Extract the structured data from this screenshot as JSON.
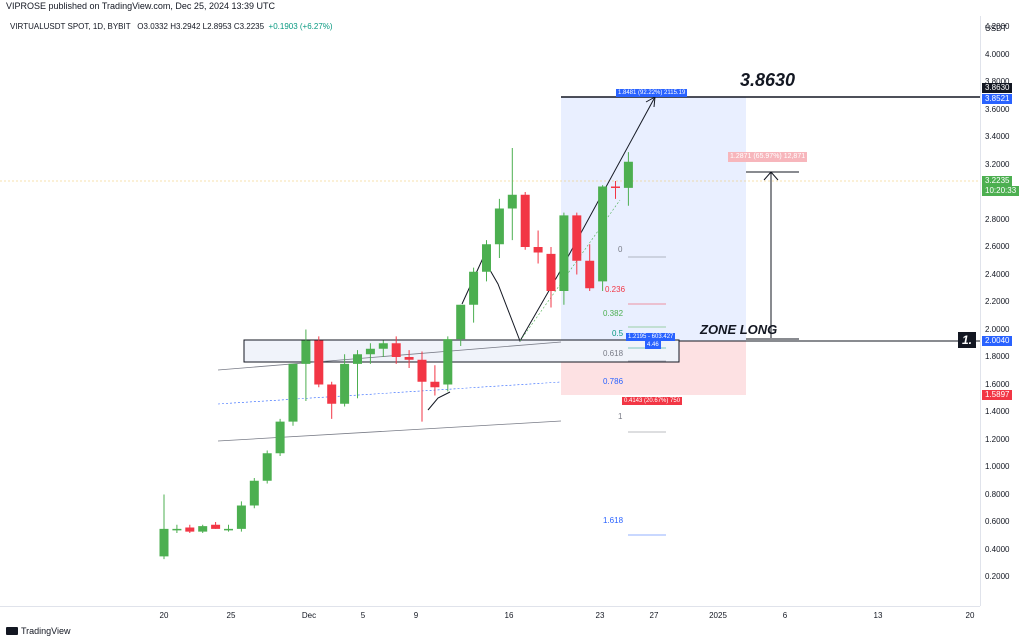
{
  "header": {
    "published": "VIPROSE published on TradingView.com, Dec 25, 2024 13:39 UTC",
    "symbol": "VIRTUALUSDT SPOT, 1D, BYBIT",
    "ohlc": "O3.0332  H3.2942  L2.8953  C3.2235",
    "change": "+0.1903 (+6.27%)",
    "currency": "USDT"
  },
  "price_axis": [
    "4.2000",
    "4.0000",
    "3.8000",
    "3.6000",
    "3.4000",
    "3.2000",
    "3.0000",
    "2.8000",
    "2.6000",
    "2.4000",
    "2.2000",
    "2.0000",
    "1.8000",
    "1.6000",
    "1.4000",
    "1.2000",
    "1.0000",
    "0.8000",
    "0.6000",
    "0.4000",
    "0.2000"
  ],
  "time_axis": [
    "20",
    "25",
    "Dec",
    "5",
    "9",
    "16",
    "23",
    "27",
    "2025",
    "6",
    "13",
    "20"
  ],
  "tags": {
    "target": "3.8630",
    "tp_box": "3.8521",
    "current": "3.2235",
    "countdown": "10:20:33",
    "entry": "2.0040",
    "stop": "1.5897"
  },
  "annotations": {
    "target_label": "3.8630",
    "zone_label": "ZONE LONG",
    "one_label": "1.",
    "profit_box": "1.8481 (92.22%) 2115.19",
    "measure_box": "1.2871 (65.97%) 12,871",
    "entry_box": "1.2195 - 603.427",
    "entry_box2": "4.46",
    "stop_box": "0.4143 (20.67%) 750"
  },
  "fib": [
    {
      "label": "0",
      "color": "#787b86"
    },
    {
      "label": "0.236",
      "color": "#f23645"
    },
    {
      "label": "0.382",
      "color": "#4caf50"
    },
    {
      "label": "0.5",
      "color": "#089981"
    },
    {
      "label": "0.618",
      "color": "#787b86"
    },
    {
      "label": "0.786",
      "color": "#2962ff"
    },
    {
      "label": "1",
      "color": "#787b86"
    },
    {
      "label": "1.618",
      "color": "#2962ff"
    }
  ],
  "footer": {
    "brand": "TradingView"
  },
  "colors": {
    "up": "#4caf50",
    "down": "#f23645",
    "blue": "#2962ff"
  },
  "chart_data": {
    "type": "candlestick",
    "title": "VIRTUALUSDT SPOT, 1D, BYBIT",
    "xlabel": "",
    "ylabel": "",
    "ylim": [
      0.1,
      4.3
    ],
    "candles": [
      {
        "o": 0.35,
        "h": 0.8,
        "l": 0.33,
        "c": 0.55
      },
      {
        "o": 0.55,
        "h": 0.58,
        "l": 0.52,
        "c": 0.55
      },
      {
        "o": 0.56,
        "h": 0.58,
        "l": 0.52,
        "c": 0.53
      },
      {
        "o": 0.53,
        "h": 0.58,
        "l": 0.52,
        "c": 0.57
      },
      {
        "o": 0.58,
        "h": 0.6,
        "l": 0.55,
        "c": 0.55
      },
      {
        "o": 0.55,
        "h": 0.58,
        "l": 0.53,
        "c": 0.55
      },
      {
        "o": 0.55,
        "h": 0.75,
        "l": 0.53,
        "c": 0.72
      },
      {
        "o": 0.72,
        "h": 0.92,
        "l": 0.7,
        "c": 0.9
      },
      {
        "o": 0.9,
        "h": 1.12,
        "l": 0.88,
        "c": 1.1
      },
      {
        "o": 1.1,
        "h": 1.35,
        "l": 1.08,
        "c": 1.33
      },
      {
        "o": 1.33,
        "h": 1.75,
        "l": 1.3,
        "c": 1.75
      },
      {
        "o": 1.75,
        "h": 2.0,
        "l": 1.48,
        "c": 1.92
      },
      {
        "o": 1.92,
        "h": 1.95,
        "l": 1.58,
        "c": 1.6
      },
      {
        "o": 1.6,
        "h": 1.62,
        "l": 1.35,
        "c": 1.46
      },
      {
        "o": 1.46,
        "h": 1.82,
        "l": 1.44,
        "c": 1.75
      },
      {
        "o": 1.75,
        "h": 1.85,
        "l": 1.5,
        "c": 1.82
      },
      {
        "o": 1.82,
        "h": 1.9,
        "l": 1.75,
        "c": 1.86
      },
      {
        "o": 1.86,
        "h": 1.92,
        "l": 1.8,
        "c": 1.9
      },
      {
        "o": 1.9,
        "h": 1.95,
        "l": 1.75,
        "c": 1.8
      },
      {
        "o": 1.8,
        "h": 1.85,
        "l": 1.72,
        "c": 1.78
      },
      {
        "o": 1.78,
        "h": 1.84,
        "l": 1.33,
        "c": 1.62
      },
      {
        "o": 1.62,
        "h": 1.74,
        "l": 1.52,
        "c": 1.58
      },
      {
        "o": 1.6,
        "h": 1.95,
        "l": 1.55,
        "c": 1.93
      },
      {
        "o": 1.93,
        "h": 2.18,
        "l": 1.88,
        "c": 2.18
      },
      {
        "o": 2.18,
        "h": 2.45,
        "l": 2.05,
        "c": 2.42
      },
      {
        "o": 2.42,
        "h": 2.65,
        "l": 2.35,
        "c": 2.62
      },
      {
        "o": 2.62,
        "h": 2.95,
        "l": 2.52,
        "c": 2.88
      },
      {
        "o": 2.88,
        "h": 3.32,
        "l": 2.65,
        "c": 2.98
      },
      {
        "o": 2.98,
        "h": 3.0,
        "l": 2.58,
        "c": 2.6
      },
      {
        "o": 2.6,
        "h": 2.72,
        "l": 2.48,
        "c": 2.56
      },
      {
        "o": 2.55,
        "h": 2.6,
        "l": 2.16,
        "c": 2.28
      },
      {
        "o": 2.28,
        "h": 2.85,
        "l": 2.18,
        "c": 2.83
      },
      {
        "o": 2.83,
        "h": 2.85,
        "l": 2.4,
        "c": 2.5
      },
      {
        "o": 2.5,
        "h": 2.62,
        "l": 2.28,
        "c": 2.3
      },
      {
        "o": 2.35,
        "h": 3.05,
        "l": 2.28,
        "c": 3.04
      },
      {
        "o": 3.04,
        "h": 3.08,
        "l": 2.95,
        "c": 3.03
      },
      {
        "o": 3.03,
        "h": 3.29,
        "l": 2.9,
        "c": 3.22
      }
    ]
  }
}
